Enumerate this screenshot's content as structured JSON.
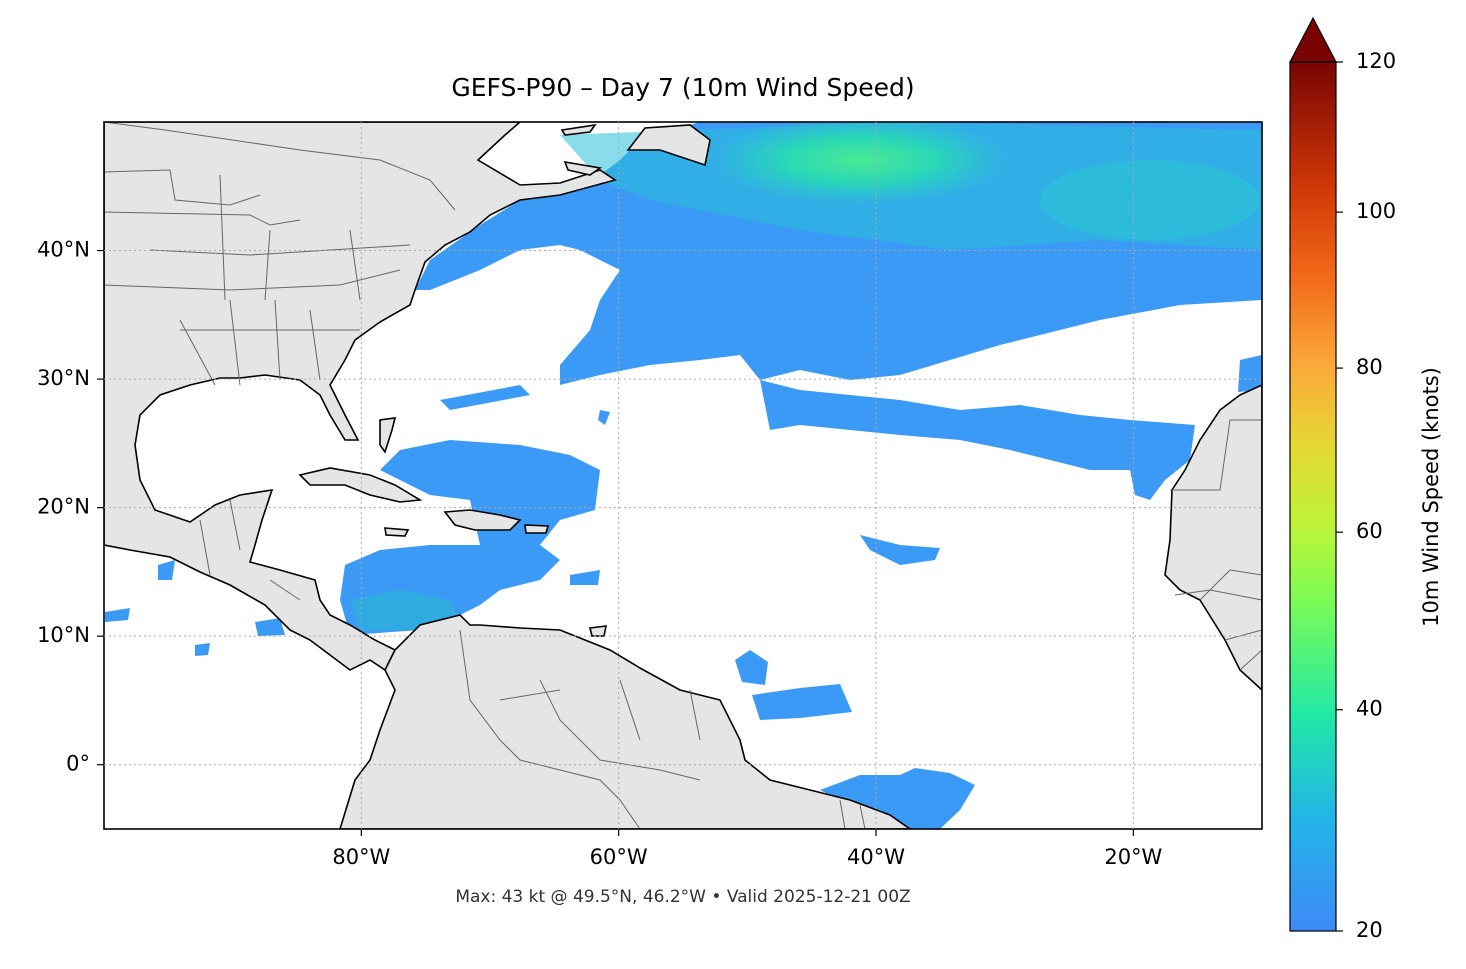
{
  "title": "GEFS-P90 – Day 7 (10m Wind Speed)",
  "footer": "Max: 43 kt @ 49.5°N, 46.2°W • Valid 2025-12-21 00Z",
  "map": {
    "xlim": [
      -100,
      -10
    ],
    "ylim": [
      -5,
      50
    ],
    "grid": true,
    "xticks": [
      {
        "value": -80,
        "label": "80°W"
      },
      {
        "value": -60,
        "label": "60°W"
      },
      {
        "value": -40,
        "label": "40°W"
      },
      {
        "value": -20,
        "label": "20°W"
      }
    ],
    "yticks": [
      {
        "value": 0,
        "label": "0°"
      },
      {
        "value": 10,
        "label": "10°N"
      },
      {
        "value": 20,
        "label": "20°N"
      },
      {
        "value": 30,
        "label": "30°N"
      },
      {
        "value": 40,
        "label": "40°N"
      }
    ]
  },
  "colorbar": {
    "label": "10m Wind Speed (knots)",
    "lim": [
      20,
      120
    ],
    "ticks": [
      20,
      40,
      60,
      80,
      100,
      120
    ]
  }
}
